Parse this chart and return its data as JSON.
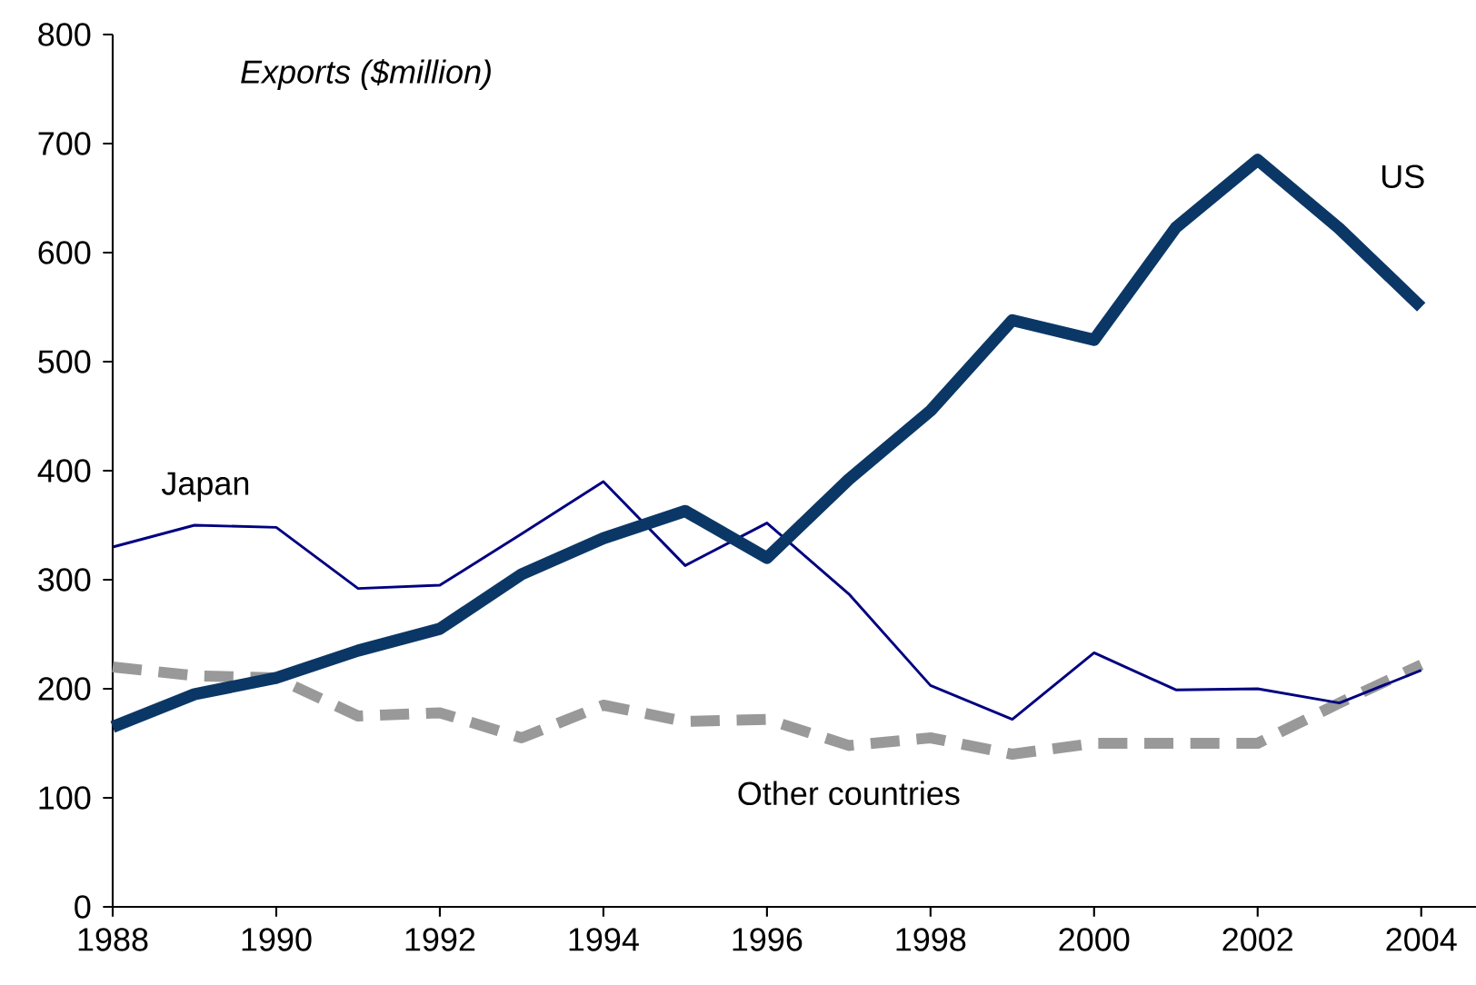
{
  "chart_data": {
    "type": "line",
    "ylabel": "Exports ($million)",
    "x": [
      1988,
      1989,
      1990,
      1991,
      1992,
      1993,
      1994,
      1995,
      1996,
      1997,
      1998,
      1999,
      2000,
      2001,
      2002,
      2003,
      2004
    ],
    "series": [
      {
        "name": "US",
        "color": "#0b3766",
        "line_style": "solid",
        "values": [
          165,
          195,
          210,
          235,
          255,
          305,
          338,
          363,
          320,
          392,
          455,
          538,
          520,
          623,
          685,
          622,
          550
        ]
      },
      {
        "name": "Japan",
        "color": "#000080",
        "line_style": "solid",
        "values": [
          330,
          350,
          348,
          292,
          295,
          342,
          390,
          313,
          352,
          287,
          203,
          172,
          233,
          199,
          200,
          187,
          217
        ]
      },
      {
        "name": "Other countries",
        "color": "#999999",
        "line_style": "dashed",
        "values": [
          220,
          212,
          210,
          175,
          178,
          155,
          185,
          170,
          172,
          148,
          155,
          140,
          150,
          150,
          150,
          187,
          222
        ]
      }
    ],
    "xlim": [
      1988,
      2004.67
    ],
    "ylim": [
      0,
      800
    ],
    "xticks": [
      1988,
      1990,
      1992,
      1994,
      1996,
      1998,
      2000,
      2002,
      2004
    ],
    "yticks": [
      0,
      100,
      200,
      300,
      400,
      500,
      600,
      700,
      800
    ],
    "grid": false,
    "marker": "none"
  }
}
